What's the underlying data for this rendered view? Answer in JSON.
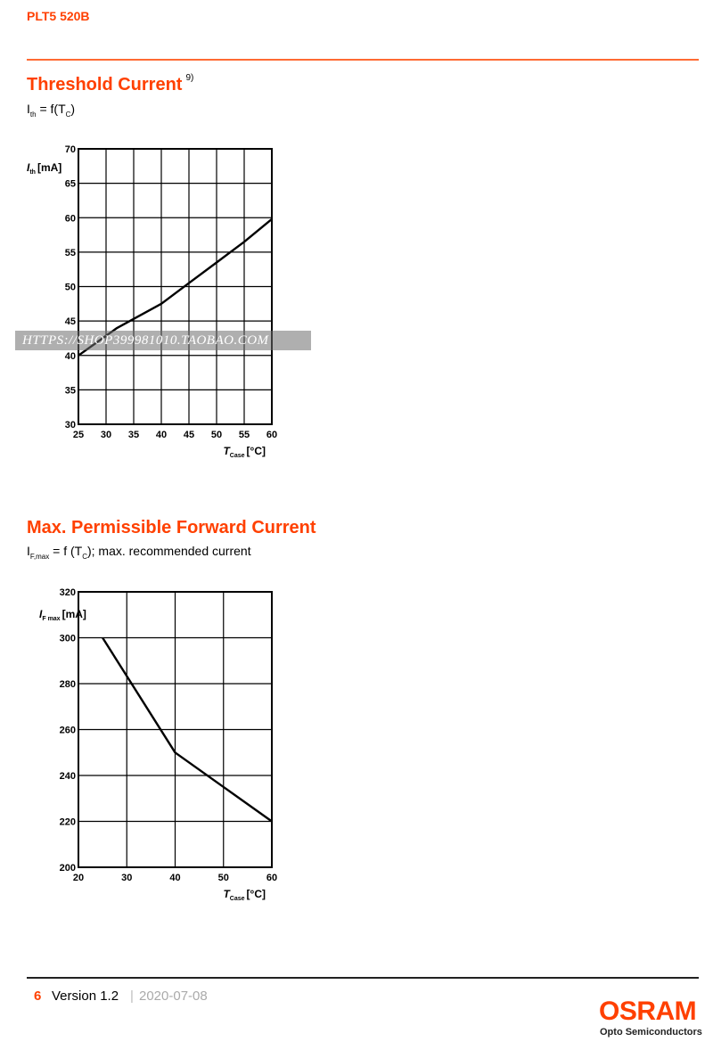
{
  "header": {
    "doc_id": "PLT5 520B"
  },
  "sections": [
    {
      "title": "Threshold Current",
      "footnote": "9)",
      "subtitle_parts": [
        "I",
        "th",
        " = f(T",
        "C",
        ")"
      ]
    },
    {
      "title": "Max. Permissible Forward Current",
      "subtitle_parts": [
        "I",
        "F,max",
        " = f (T",
        "C",
        "); max. recommended current"
      ]
    }
  ],
  "watermark": "HTTPS://SHOP399981010.TAOBAO.COM",
  "chart_data": [
    {
      "type": "line",
      "title": "",
      "xlabel": {
        "symbol": "T",
        "sub": "Case",
        "unit": "[°C]"
      },
      "ylabel": {
        "symbol": "I",
        "sub": "th",
        "unit": "[mA]"
      },
      "xlim": [
        25,
        60
      ],
      "ylim": [
        30,
        70
      ],
      "xticks": [
        25,
        30,
        35,
        40,
        45,
        50,
        55,
        60
      ],
      "yticks": [
        30,
        35,
        40,
        45,
        50,
        55,
        60,
        65,
        70
      ],
      "grid": true,
      "series": [
        {
          "x": [
            25,
            32,
            40,
            45,
            50,
            55,
            60
          ],
          "y": [
            40,
            44,
            47.5,
            50.5,
            53.5,
            56.5,
            59.8
          ]
        }
      ]
    },
    {
      "type": "line",
      "title": "",
      "xlabel": {
        "symbol": "T",
        "sub": "Case",
        "unit": "[°C]"
      },
      "ylabel": {
        "symbol": "I",
        "sub": "F max",
        "unit": "[mA]"
      },
      "xlim": [
        20,
        60
      ],
      "ylim": [
        200,
        320
      ],
      "xticks": [
        20,
        30,
        40,
        50,
        60
      ],
      "yticks": [
        200,
        220,
        240,
        260,
        280,
        300,
        320
      ],
      "grid": true,
      "series": [
        {
          "x": [
            25,
            40,
            60
          ],
          "y": [
            300,
            250,
            220
          ]
        }
      ]
    }
  ],
  "footer": {
    "page": "6",
    "version": "Version 1.2",
    "separator": "|",
    "date": "2020-07-08"
  },
  "logo": {
    "name": "OSRAM",
    "tagline": "Opto Semiconductors"
  }
}
